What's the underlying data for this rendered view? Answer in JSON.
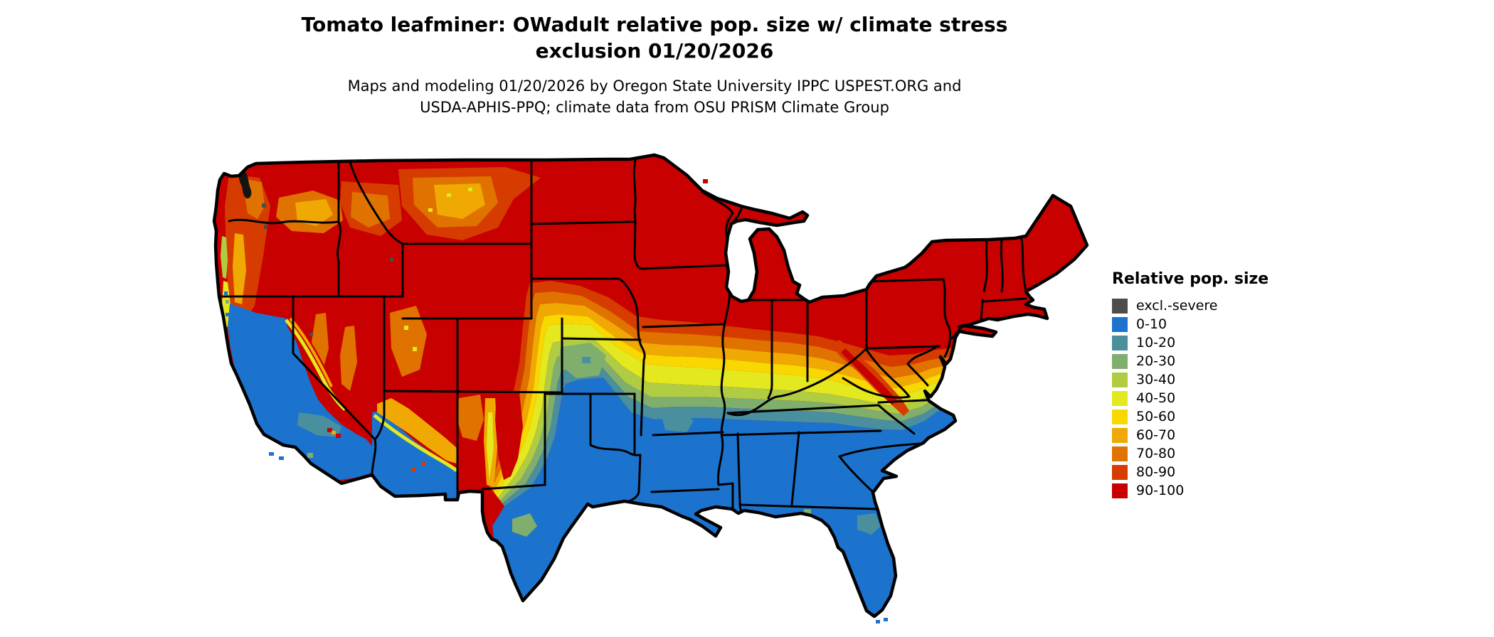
{
  "header": {
    "title_line1": "Tomato leafminer: OWadult relative pop. size w/ climate stress",
    "title_line2": "exclusion 01/20/2026",
    "subtitle_line1": "Maps and modeling 01/20/2026 by Oregon State University IPPC USPEST.ORG and",
    "subtitle_line2": "USDA-APHIS-PPQ; climate data from OSU PRISM Climate Group"
  },
  "legend": {
    "title": "Relative pop. size",
    "items": [
      {
        "label": "excl.-severe",
        "color": "#4d4d4d"
      },
      {
        "label": "0-10",
        "color": "#1c73cd"
      },
      {
        "label": "10-20",
        "color": "#4a8f9e"
      },
      {
        "label": "20-30",
        "color": "#80ae6d"
      },
      {
        "label": "30-40",
        "color": "#b0cc42"
      },
      {
        "label": "40-50",
        "color": "#e4e81e"
      },
      {
        "label": "50-60",
        "color": "#f8d800"
      },
      {
        "label": "60-70",
        "color": "#f0a802"
      },
      {
        "label": "70-80",
        "color": "#e07200"
      },
      {
        "label": "80-90",
        "color": "#d63c00"
      },
      {
        "label": "90-100",
        "color": "#c80000"
      }
    ]
  },
  "colors": {
    "severe": "#4d4d4d",
    "b0_10": "#1c73cd",
    "b10_20": "#4a8f9e",
    "b20_30": "#80ae6d",
    "b30_40": "#b0cc42",
    "b40_50": "#e4e81e",
    "b50_60": "#f8d800",
    "b60_70": "#f0a802",
    "b70_80": "#e07200",
    "b80_90": "#d63c00",
    "b90_100": "#c80000",
    "water_ink": "#141414",
    "border": "#000000",
    "background": "#ffffff"
  },
  "map": {
    "region": "Continental United States (lower 48 states)",
    "type": "raster risk map with state boundaries",
    "pattern_summary": "Northern states and western mountains 90-100 (red); transition bands of orange, yellow and green across the central plains, mid-South and mid-Atlantic; southern states, Texas, Gulf coast, Florida, California valleys/coast and low deserts of Arizona 0-10 (blue)."
  }
}
